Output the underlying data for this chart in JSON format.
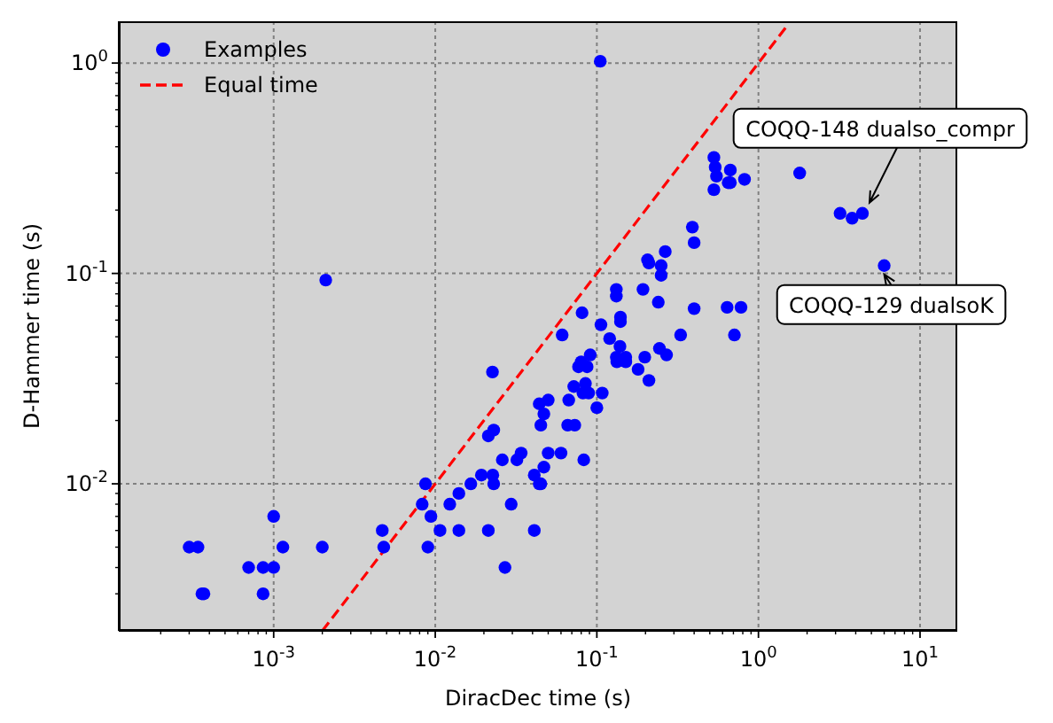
{
  "chart_data": {
    "type": "scatter",
    "xlabel": "DiracDec time (s)",
    "ylabel": "D-Hammer time (s)",
    "log": "xy",
    "grid": true,
    "legend": "top left",
    "xlim": [
      0.00011,
      17
    ],
    "ylim": [
      0.002,
      1.58
    ],
    "xticks": [
      {
        "value": 0.0002,
        "label": null
      },
      {
        "value": 0.0003,
        "label": null
      },
      {
        "value": 0.0004,
        "label": null
      },
      {
        "value": 0.0005,
        "label": null
      },
      {
        "value": 0.0006,
        "label": null
      },
      {
        "value": 0.0007,
        "label": null
      },
      {
        "value": 0.0008,
        "label": null
      },
      {
        "value": 0.0009,
        "label": null
      },
      {
        "value": 0.001,
        "label": "10$^{-3}$"
      },
      {
        "value": 0.002,
        "label": null
      },
      {
        "value": 0.003,
        "label": null
      },
      {
        "value": 0.004,
        "label": null
      },
      {
        "value": 0.005,
        "label": null
      },
      {
        "value": 0.006,
        "label": null
      },
      {
        "value": 0.007,
        "label": null
      },
      {
        "value": 0.008,
        "label": null
      },
      {
        "value": 0.009,
        "label": null
      },
      {
        "value": 0.01,
        "label": "10$^{-2}$"
      },
      {
        "value": 0.02,
        "label": null
      },
      {
        "value": 0.03,
        "label": null
      },
      {
        "value": 0.04,
        "label": null
      },
      {
        "value": 0.05,
        "label": null
      },
      {
        "value": 0.06,
        "label": null
      },
      {
        "value": 0.07,
        "label": null
      },
      {
        "value": 0.08,
        "label": null
      },
      {
        "value": 0.09,
        "label": null
      },
      {
        "value": 0.1,
        "label": "10$^{-1}$"
      },
      {
        "value": 0.2,
        "label": null
      },
      {
        "value": 0.3,
        "label": null
      },
      {
        "value": 0.4,
        "label": null
      },
      {
        "value": 0.5,
        "label": null
      },
      {
        "value": 0.6,
        "label": null
      },
      {
        "value": 0.7,
        "label": null
      },
      {
        "value": 0.8,
        "label": null
      },
      {
        "value": 0.9,
        "label": null
      },
      {
        "value": 1,
        "label": "10$^{0}$"
      },
      {
        "value": 2,
        "label": null
      },
      {
        "value": 3,
        "label": null
      },
      {
        "value": 4,
        "label": null
      },
      {
        "value": 5,
        "label": null
      },
      {
        "value": 6,
        "label": null
      },
      {
        "value": 7,
        "label": null
      },
      {
        "value": 8,
        "label": null
      },
      {
        "value": 9,
        "label": null
      },
      {
        "value": 10,
        "label": "10$^{1}$"
      }
    ],
    "yticks": [
      {
        "value": 0.003,
        "label": null
      },
      {
        "value": 0.004,
        "label": null
      },
      {
        "value": 0.005,
        "label": null
      },
      {
        "value": 0.006,
        "label": null
      },
      {
        "value": 0.007,
        "label": null
      },
      {
        "value": 0.008,
        "label": null
      },
      {
        "value": 0.009,
        "label": null
      },
      {
        "value": 0.01,
        "label": "10$^{-2}$"
      },
      {
        "value": 0.02,
        "label": null
      },
      {
        "value": 0.03,
        "label": null
      },
      {
        "value": 0.04,
        "label": null
      },
      {
        "value": 0.05,
        "label": null
      },
      {
        "value": 0.06,
        "label": null
      },
      {
        "value": 0.07,
        "label": null
      },
      {
        "value": 0.08,
        "label": null
      },
      {
        "value": 0.09,
        "label": null
      },
      {
        "value": 0.1,
        "label": "10$^{-1}$"
      },
      {
        "value": 0.2,
        "label": null
      },
      {
        "value": 0.3,
        "label": null
      },
      {
        "value": 0.4,
        "label": null
      },
      {
        "value": 0.5,
        "label": null
      },
      {
        "value": 0.6,
        "label": null
      },
      {
        "value": 0.7,
        "label": null
      },
      {
        "value": 0.8,
        "label": null
      },
      {
        "value": 0.9,
        "label": null
      },
      {
        "value": 1,
        "label": "10$^{0}$"
      }
    ],
    "series": [
      {
        "name": "Examples",
        "marker": "circle",
        "color": "#0000ff",
        "x": [
          0.0003,
          0.00034,
          0.00036,
          0.00037,
          0.0007,
          0.00086,
          0.001,
          0.00086,
          0.001,
          0.00114,
          0.002,
          0.0047,
          0.0048,
          0.0087,
          0.0083,
          0.0094,
          0.009,
          0.0107,
          0.0123,
          0.014,
          0.014,
          0.0021,
          0.0226,
          0.0213,
          0.023,
          0.026,
          0.032,
          0.034,
          0.0193,
          0.0227,
          0.023,
          0.0166,
          0.0213,
          0.0295,
          0.041,
          0.027,
          0.041,
          0.044,
          0.045,
          0.047,
          0.05,
          0.06,
          0.083,
          0.044,
          0.05,
          0.047,
          0.045,
          0.066,
          0.073,
          0.067,
          0.072,
          0.085,
          0.082,
          0.089,
          0.087,
          0.077,
          0.1,
          0.108,
          0.133,
          0.151,
          0.18,
          0.21,
          0.105,
          0.53,
          0.54,
          0.55,
          0.67,
          0.67,
          0.82,
          0.53,
          0.65,
          0.39,
          0.4,
          0.206,
          0.21,
          0.265,
          0.25,
          0.25,
          0.132,
          0.132,
          0.193,
          0.24,
          0.4,
          0.64,
          0.78,
          0.71,
          0.081,
          0.061,
          0.106,
          0.14,
          0.14,
          0.12,
          0.139,
          0.151,
          0.132,
          0.091,
          0.08,
          0.198,
          0.244,
          0.27,
          0.33,
          1.8,
          3.2,
          3.8,
          4.4,
          6.0
        ],
        "values": [
          0.005,
          0.005,
          0.003,
          0.003,
          0.004,
          0.004,
          0.004,
          0.003,
          0.007,
          0.005,
          0.005,
          0.006,
          0.005,
          0.01,
          0.008,
          0.007,
          0.005,
          0.006,
          0.008,
          0.009,
          0.006,
          0.093,
          0.034,
          0.0169,
          0.018,
          0.013,
          0.013,
          0.014,
          0.011,
          0.011,
          0.01,
          0.01,
          0.006,
          0.008,
          0.006,
          0.004,
          0.011,
          0.01,
          0.01,
          0.012,
          0.014,
          0.014,
          0.013,
          0.024,
          0.025,
          0.0215,
          0.019,
          0.019,
          0.019,
          0.025,
          0.029,
          0.03,
          0.027,
          0.027,
          0.036,
          0.036,
          0.023,
          0.027,
          0.038,
          0.038,
          0.035,
          0.031,
          1.02,
          0.356,
          0.32,
          0.29,
          0.31,
          0.27,
          0.28,
          0.25,
          0.27,
          0.166,
          0.14,
          0.116,
          0.112,
          0.127,
          0.109,
          0.098,
          0.084,
          0.078,
          0.084,
          0.073,
          0.068,
          0.069,
          0.069,
          0.051,
          0.065,
          0.051,
          0.057,
          0.062,
          0.059,
          0.049,
          0.045,
          0.04,
          0.04,
          0.041,
          0.038,
          0.04,
          0.044,
          0.041,
          0.051,
          0.3,
          0.193,
          0.183,
          0.193,
          0.109
        ]
      },
      {
        "name": "Equal time",
        "type": "line",
        "marker": "none",
        "line_style": "dashed",
        "color": "#ff0000",
        "x": [
          0.002,
          1.5
        ],
        "values": [
          0.002,
          1.5
        ]
      }
    ],
    "annotations": [
      {
        "text": "COQQ-148 dualso_compr",
        "x": 4.4,
        "y": 0.193
      },
      {
        "text": "COQQ-129 dualsoK",
        "x": 6.0,
        "y": 0.109
      }
    ]
  }
}
